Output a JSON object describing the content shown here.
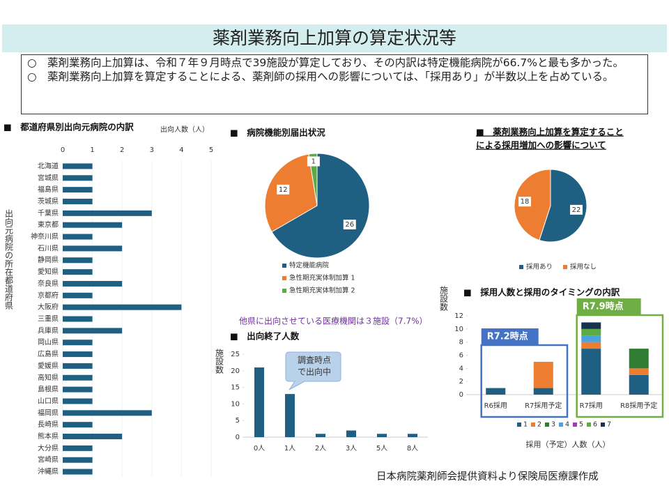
{
  "header": {
    "title": "薬剤業務向上加算の算定状況等",
    "bullets": [
      "○　薬剤業務向上加算は、令和７年９月時点で39施設が算定しており、その内訳は特定機能病院が66.7%と最も多かった。",
      "○　薬剤業務向上加算を算定することによる、薬剤師の採用への影響については、「採用あり」が半数以上を占めている。"
    ]
  },
  "source": "日本病院薬剤師会提供資料より保険局医療課作成",
  "chart_data": [
    {
      "type": "hbar",
      "title": "■　都道府県別出向元病院の内訳",
      "x_label": "出向人数（人）",
      "y_label": "出向元病院の所在都道府県",
      "categories": [
        "北海道",
        "宮城県",
        "福島県",
        "茨城県",
        "千葉県",
        "東京都",
        "神奈川県",
        "石川県",
        "静岡県",
        "愛知県",
        "奈良県",
        "京都府",
        "大阪府",
        "三重県",
        "兵庫県",
        "岡山県",
        "広島県",
        "愛媛県",
        "高知県",
        "島根県",
        "山口県",
        "福岡県",
        "長崎県",
        "熊本県",
        "大分県",
        "宮崎県",
        "沖縄県"
      ],
      "values": [
        1,
        1,
        1,
        1,
        3,
        2,
        1,
        2,
        1,
        1,
        2,
        1,
        4,
        1,
        2,
        1,
        1,
        1,
        1,
        1,
        1,
        3,
        1,
        2,
        1,
        1,
        1
      ],
      "color": "#1f5f82",
      "xlim": [
        0,
        5
      ],
      "xticks": [
        0,
        1,
        2,
        3,
        4,
        5
      ]
    },
    {
      "type": "pie",
      "title": "■　病院機能別届出状況",
      "categories": [
        "特定機能病院",
        "急性期充実体制加算 1",
        "急性期充実体制加算 2"
      ],
      "values": [
        26,
        12,
        1
      ],
      "colors": [
        "#1f5f82",
        "#ed7d31",
        "#5bab44"
      ],
      "legend": "bottom",
      "annotation": "他県に出向させている医療機関は３施設（7.7%）"
    },
    {
      "type": "pie",
      "title": [
        "■　薬剤業務向上加算を算定すること",
        "による採用増加への影響について"
      ],
      "categories": [
        "採用あり",
        "採用なし"
      ],
      "values": [
        22,
        18
      ],
      "colors": [
        "#1f5f82",
        "#ed7d31"
      ],
      "legend": "bottom"
    },
    {
      "type": "bar",
      "title": "■　出向終了人数",
      "y_label": "施設数",
      "categories": [
        "0人",
        "1人",
        "2人",
        "3人",
        "5人",
        "8人"
      ],
      "values": [
        21,
        13,
        1,
        2,
        1,
        1
      ],
      "color": "#1f5f82",
      "ylim": [
        0,
        25
      ],
      "yticks": [
        0,
        5,
        10,
        15,
        20,
        25
      ],
      "callout": [
        "調査時点",
        "で出向中"
      ]
    },
    {
      "type": "stacked_bar",
      "title": "■　採用人数と採用のタイミングの内訳",
      "y_label": "施設数",
      "x_label": "採用（予定）人数（人）",
      "categories": [
        "R6採用",
        "R7採用予定",
        "R7採用",
        "R8採用予定"
      ],
      "series": [
        {
          "name": "1",
          "color": "#1f5f82",
          "values": [
            1,
            1,
            7,
            3
          ]
        },
        {
          "name": "2",
          "color": "#ed7d31",
          "values": [
            0,
            4,
            1,
            1
          ]
        },
        {
          "name": "3",
          "color": "#2e7d32",
          "values": [
            0,
            0,
            0,
            3
          ]
        },
        {
          "name": "4",
          "color": "#4aa3df",
          "values": [
            0,
            0,
            1,
            0
          ]
        },
        {
          "name": "5",
          "color": "#a23bb5",
          "values": [
            0,
            0,
            0,
            0
          ]
        },
        {
          "name": "6",
          "color": "#5bab44",
          "values": [
            0,
            0,
            1,
            0
          ]
        },
        {
          "name": "7",
          "color": "#17324d",
          "values": [
            0,
            0,
            1,
            0
          ]
        }
      ],
      "ylim": [
        0,
        12
      ],
      "yticks": [
        0,
        2,
        4,
        6,
        8,
        10,
        12
      ],
      "groups": [
        {
          "label": "R7.2時点",
          "color": "#4472c4"
        },
        {
          "label": "R7.9時点",
          "color": "#70ad47"
        }
      ]
    }
  ]
}
